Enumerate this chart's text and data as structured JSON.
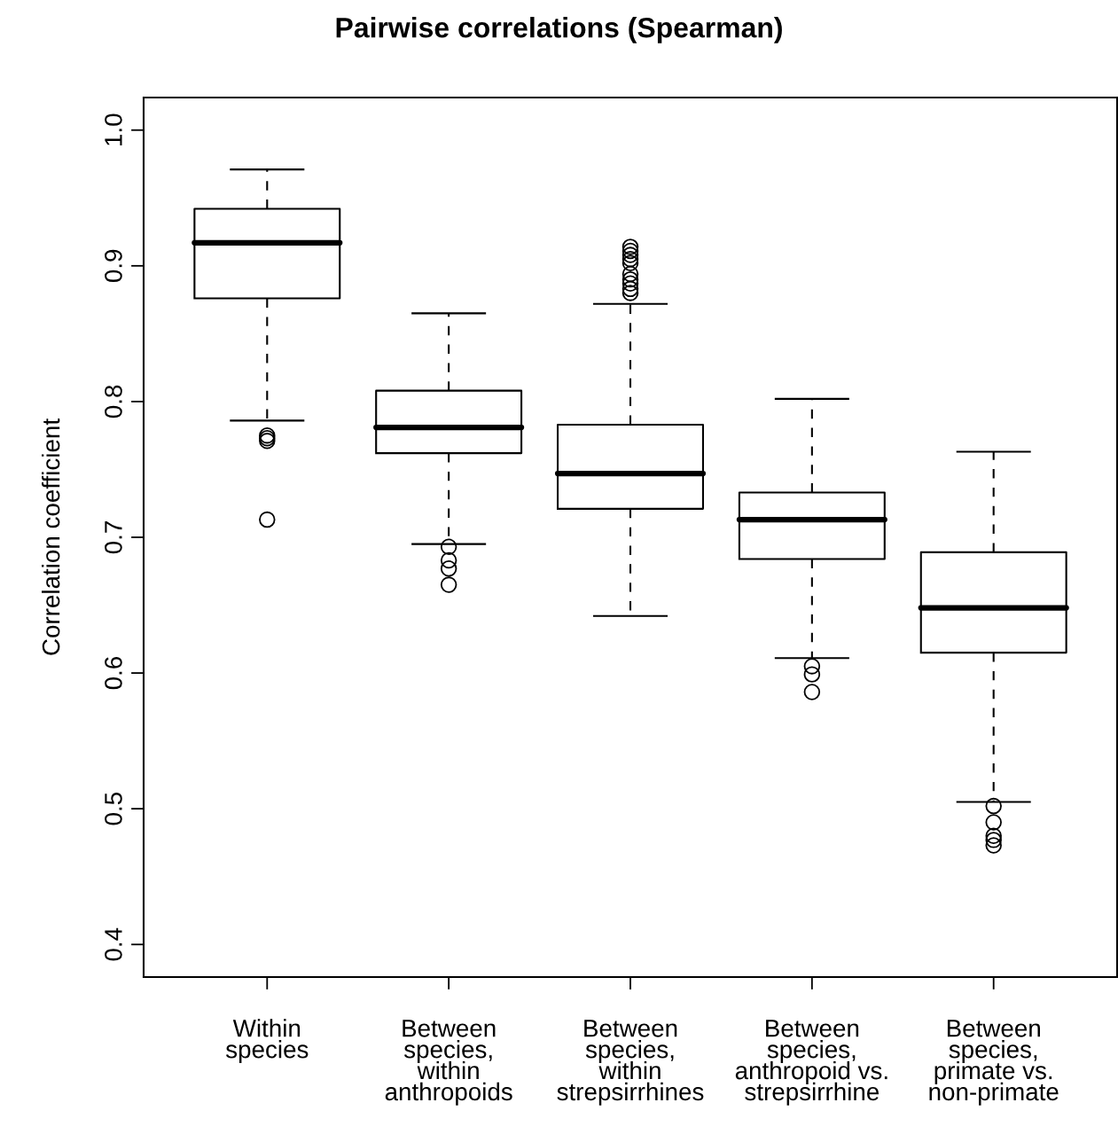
{
  "chart_data": {
    "type": "box",
    "title": "Pairwise correlations (Spearman)",
    "ylabel": "Correlation coefficient",
    "categories": [
      "Within\nspecies",
      "Between\nspecies,\nwithin\nanthropoids",
      "Between\nspecies,\nwithin\nstrepsirrhines",
      "Between\nspecies,\nanthropoid vs.\nstrepsirrhine",
      "Between\nspecies,\nprimate vs.\nnon-primate"
    ],
    "boxes": [
      {
        "low": 0.786,
        "q1": 0.876,
        "median": 0.917,
        "q3": 0.942,
        "high": 0.971,
        "outliers": [
          0.775,
          0.773,
          0.771,
          0.713
        ]
      },
      {
        "low": 0.695,
        "q1": 0.762,
        "median": 0.781,
        "q3": 0.808,
        "high": 0.865,
        "outliers": [
          0.693,
          0.683,
          0.677,
          0.665
        ]
      },
      {
        "low": 0.642,
        "q1": 0.721,
        "median": 0.747,
        "q3": 0.783,
        "high": 0.872,
        "outliers": [
          0.914,
          0.911,
          0.908,
          0.905,
          0.902,
          0.894,
          0.89,
          0.887,
          0.883,
          0.88
        ]
      },
      {
        "low": 0.611,
        "q1": 0.684,
        "median": 0.713,
        "q3": 0.733,
        "high": 0.802,
        "outliers": [
          0.605,
          0.599,
          0.586
        ]
      },
      {
        "low": 0.505,
        "q1": 0.615,
        "median": 0.648,
        "q3": 0.689,
        "high": 0.763,
        "outliers": [
          0.502,
          0.49,
          0.48,
          0.477,
          0.473
        ]
      }
    ],
    "color": "#000000",
    "ylim": [
      0.376,
      1.024
    ],
    "yticks": [
      0.4,
      0.5,
      0.6,
      0.7,
      0.8,
      0.9,
      {
        "value": 1,
        "label": "1.0"
      }
    ],
    "grid": false,
    "line_style": "dashed"
  }
}
